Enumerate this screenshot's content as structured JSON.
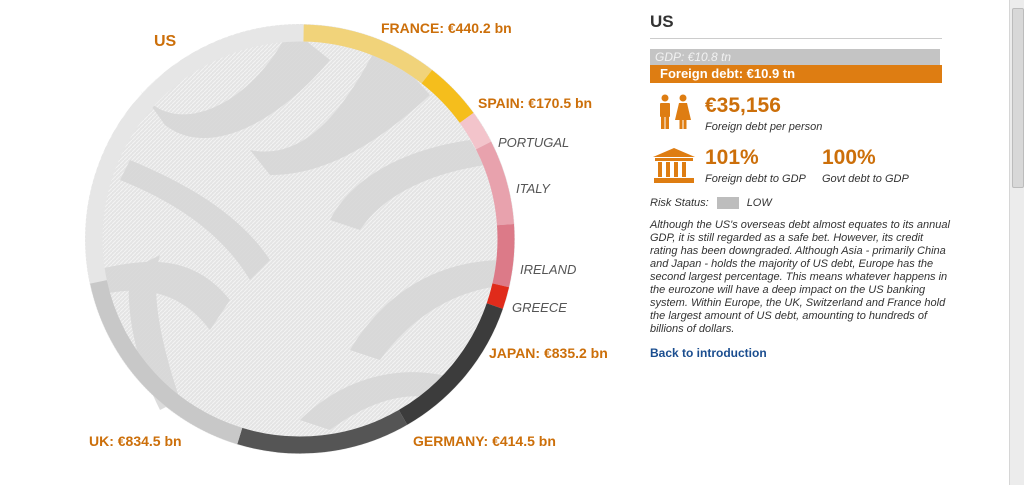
{
  "chart": {
    "highlight": "US",
    "creditors": [
      {
        "label": "FRANCE: €440.2 bn",
        "style": "bold",
        "color": "#f1d37a"
      },
      {
        "label": "SPAIN: €170.5 bn",
        "style": "bold",
        "color": "#f5be1c"
      },
      {
        "label": "PORTUGAL",
        "style": "italic",
        "color": "#f3c4cb"
      },
      {
        "label": "ITALY",
        "style": "italic",
        "color": "#e8a2ad"
      },
      {
        "label": "IRELAND",
        "style": "italic",
        "color": "#dc7a88"
      },
      {
        "label": "GREECE",
        "style": "italic",
        "color": "#e02b1b"
      },
      {
        "label": "JAPAN: €835.2 bn",
        "style": "bold",
        "color": "#3c3c3c"
      },
      {
        "label": "GERMANY: €414.5 bn",
        "style": "bold",
        "color": "#555555"
      },
      {
        "label": "UK: €834.5 bn",
        "style": "bold",
        "color": "#c8c8c8"
      }
    ],
    "base_color": "#e6e6e6"
  },
  "panel": {
    "country": "US",
    "gdp_label": "GDP: €10.8 tn",
    "debt_label": "Foreign debt: €10.9 tn",
    "per_person_value": "€35,156",
    "per_person_caption": "Foreign debt per person",
    "debt_gdp_value": "101%",
    "debt_gdp_caption": "Foreign debt to GDP",
    "govt_gdp_value": "100%",
    "govt_gdp_caption": "Govt debt to GDP",
    "risk_label": "Risk Status:",
    "risk_value": "LOW",
    "description": "Although the US's overseas debt almost equates to its annual GDP, it is still regarded as a safe bet. However, its credit rating has been downgraded. Although Asia - primarily China and Japan - holds the majority of US debt, Europe has the second largest percentage. This means whatever happens in the eurozone will have a deep impact on the US banking system. Within Europe, the UK, Switzerland and France hold the largest amount of US debt, amounting to hundreds of billions of dollars.",
    "back_link": "Back to introduction",
    "accent_color": "#de7d12"
  }
}
